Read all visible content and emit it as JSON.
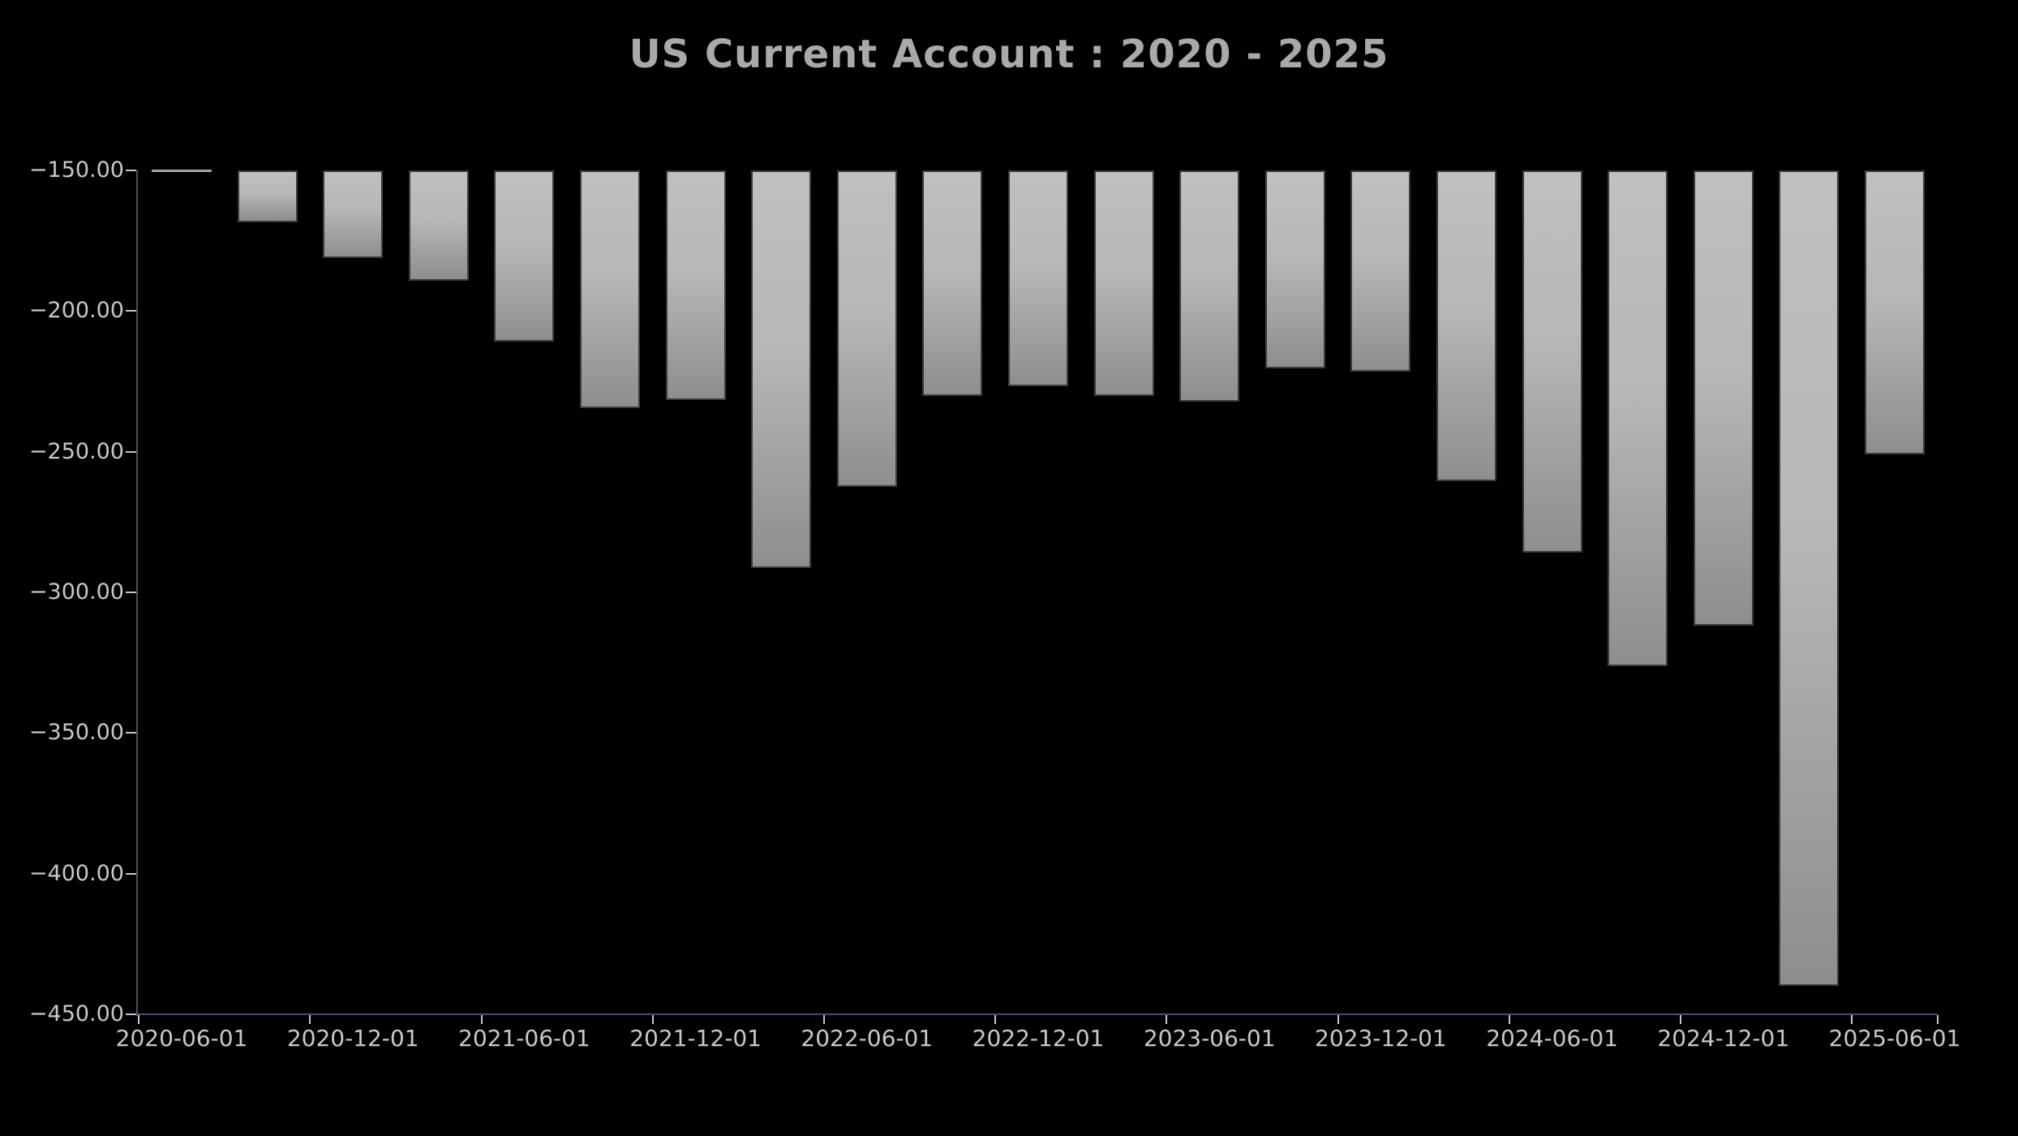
{
  "title": "US Current Account : 2020 - 2025",
  "colors": {
    "background": "#000000",
    "title_text": "#a9a9a9",
    "axis_spine": "#44506a",
    "tick_mark": "#c2c6cc",
    "tick_label_text": "#c8c8c8",
    "bar_gradient_top": "#c0c0c0",
    "bar_gradient_bottom": "#8e8e8e",
    "bar_border": "#3c3c3c",
    "zero_height_bar_line": "#a0a5ad"
  },
  "chart_data": {
    "type": "bar",
    "title": "US Current Account : 2020 - 2025",
    "x": [
      "2020-06-01",
      "2020-09-01",
      "2020-12-01",
      "2021-03-01",
      "2021-06-01",
      "2021-09-01",
      "2021-12-01",
      "2022-03-01",
      "2022-06-01",
      "2022-09-01",
      "2022-12-01",
      "2023-03-01",
      "2023-06-01",
      "2023-09-01",
      "2023-12-01",
      "2024-03-01",
      "2024-06-01",
      "2024-09-01",
      "2024-12-01",
      "2025-03-01",
      "2025-06-01"
    ],
    "values": [
      -150.0,
      -168.5,
      -181.2,
      -189.2,
      -210.9,
      -234.5,
      -231.6,
      -291.3,
      -262.5,
      -230.2,
      -226.7,
      -230.2,
      -232.2,
      -220.4,
      -221.5,
      -260.5,
      -285.9,
      -326.3,
      -311.8,
      -439.9,
      -251.0
    ],
    "x_tick_labels": [
      "2020-06-01",
      "2020-12-01",
      "2021-06-01",
      "2021-12-01",
      "2022-06-01",
      "2022-12-01",
      "2023-06-01",
      "2023-12-01",
      "2024-06-01",
      "2024-12-01",
      "2025-06-01"
    ],
    "y_ticks": [
      -150,
      -200,
      -250,
      -300,
      -350,
      -400,
      -450
    ],
    "y_tick_labels": [
      "−150.00",
      "−200.00",
      "−250.00",
      "−300.00",
      "−350.00",
      "−400.00",
      "−450.00"
    ],
    "ylim": [
      -450,
      -150
    ],
    "xlabel": "",
    "ylabel": "",
    "grid": false,
    "legend_position": "none",
    "bars_per_label": 2
  }
}
